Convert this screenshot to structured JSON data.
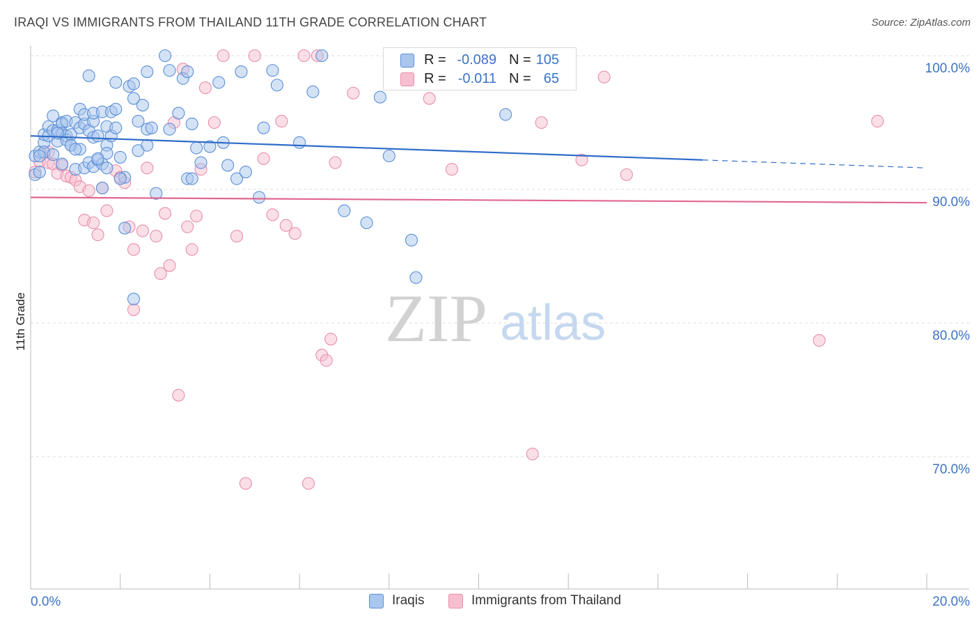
{
  "title": "IRAQI VS IMMIGRANTS FROM THAILAND 11TH GRADE CORRELATION CHART",
  "source": "Source: ZipAtlas.com",
  "watermark": {
    "part1": "ZIP",
    "part2": "atlas"
  },
  "stats": {
    "iraqis": {
      "r_label": "R =",
      "r_value": "-0.089",
      "n_label": "N =",
      "n_value": "105"
    },
    "thailand": {
      "r_label": "R =",
      "r_value": "-0.011",
      "n_label": "N =",
      "n_value": "65"
    }
  },
  "legend": {
    "iraqis": "Iraqis",
    "thailand": "Immigrants from Thailand"
  },
  "colors": {
    "iraqis_fill": "#a9c6ee",
    "iraqis_stroke": "#5b8fd6",
    "iraqis_line": "#2f6cc9",
    "thailand_fill": "#f6bfd0",
    "thailand_stroke": "#e88eab",
    "thailand_line": "#e0678f",
    "tick_text": "#3b73c4",
    "grid": "#dcdcdc"
  },
  "chart_data": {
    "type": "scatter",
    "title": "IRAQI VS IMMIGRANTS FROM THAILAND 11TH GRADE CORRELATION CHART",
    "xlabel": "",
    "ylabel": "11th Grade",
    "xlim": [
      0,
      20
    ],
    "ylim": [
      61,
      100.6
    ],
    "x_tick_labels": [
      "0.0%",
      "20.0%"
    ],
    "y_ticks": [
      100,
      90,
      80,
      70
    ],
    "y_tick_labels": [
      "100.0%",
      "90.0%",
      "80.0%",
      "70.0%"
    ],
    "grid": true,
    "legend_position": "bottom-center",
    "series": [
      {
        "name": "Iraqis",
        "r": -0.089,
        "n": 105,
        "trend": {
          "x": [
            0,
            15
          ],
          "y": [
            94.0,
            92.2
          ],
          "dashed_to": [
            20,
            91.6
          ]
        },
        "points": [
          [
            0.1,
            91.1
          ],
          [
            0.1,
            92.5
          ],
          [
            0.2,
            91.3
          ],
          [
            0.2,
            92.8
          ],
          [
            0.3,
            93.5
          ],
          [
            0.3,
            92.8
          ],
          [
            0.3,
            94.1
          ],
          [
            0.4,
            94.7
          ],
          [
            0.4,
            94.0
          ],
          [
            0.5,
            95.5
          ],
          [
            0.5,
            94.4
          ],
          [
            0.5,
            92.6
          ],
          [
            0.6,
            93.6
          ],
          [
            0.6,
            94.4
          ],
          [
            0.7,
            95.0
          ],
          [
            0.7,
            94.9
          ],
          [
            0.7,
            94.2
          ],
          [
            0.7,
            91.9
          ],
          [
            0.8,
            94.0
          ],
          [
            0.8,
            93.7
          ],
          [
            0.8,
            95.1
          ],
          [
            0.9,
            93.3
          ],
          [
            0.9,
            94.1
          ],
          [
            0.9,
            93.3
          ],
          [
            1.0,
            95.0
          ],
          [
            1.0,
            91.5
          ],
          [
            1.1,
            96.0
          ],
          [
            1.1,
            94.6
          ],
          [
            1.1,
            93.0
          ],
          [
            1.2,
            94.9
          ],
          [
            1.2,
            91.6
          ],
          [
            1.2,
            95.6
          ],
          [
            1.3,
            94.4
          ],
          [
            1.3,
            92.0
          ],
          [
            1.4,
            93.9
          ],
          [
            1.4,
            91.7
          ],
          [
            1.4,
            95.1
          ],
          [
            1.4,
            95.7
          ],
          [
            1.5,
            94.0
          ],
          [
            1.5,
            92.2
          ],
          [
            1.6,
            95.8
          ],
          [
            1.6,
            91.9
          ],
          [
            1.6,
            90.1
          ],
          [
            1.7,
            91.6
          ],
          [
            1.7,
            94.7
          ],
          [
            1.7,
            93.3
          ],
          [
            1.7,
            92.7
          ],
          [
            1.8,
            95.8
          ],
          [
            1.8,
            94.0
          ],
          [
            1.9,
            94.6
          ],
          [
            1.9,
            96.0
          ],
          [
            2.0,
            92.4
          ],
          [
            2.1,
            90.9
          ],
          [
            2.1,
            87.1
          ],
          [
            2.2,
            97.7
          ],
          [
            2.3,
            96.8
          ],
          [
            2.4,
            95.1
          ],
          [
            2.4,
            92.9
          ],
          [
            2.5,
            96.3
          ],
          [
            2.6,
            93.3
          ],
          [
            2.6,
            94.5
          ],
          [
            2.7,
            94.6
          ],
          [
            2.8,
            89.7
          ],
          [
            3.0,
            100.0
          ],
          [
            3.1,
            94.5
          ],
          [
            3.1,
            98.9
          ],
          [
            3.3,
            95.7
          ],
          [
            3.4,
            98.3
          ],
          [
            3.5,
            98.8
          ],
          [
            3.5,
            90.8
          ],
          [
            3.6,
            94.9
          ],
          [
            3.6,
            90.8
          ],
          [
            3.7,
            93.1
          ],
          [
            3.8,
            92.0
          ],
          [
            4.0,
            93.2
          ],
          [
            4.2,
            98.0
          ],
          [
            4.3,
            93.5
          ],
          [
            4.4,
            91.8
          ],
          [
            4.6,
            90.8
          ],
          [
            4.7,
            98.8
          ],
          [
            4.8,
            91.3
          ],
          [
            5.1,
            89.4
          ],
          [
            5.2,
            94.6
          ],
          [
            5.4,
            98.9
          ],
          [
            5.5,
            97.8
          ],
          [
            6.0,
            93.5
          ],
          [
            6.3,
            97.3
          ],
          [
            6.5,
            100.0
          ],
          [
            7.0,
            88.4
          ],
          [
            7.5,
            87.5
          ],
          [
            7.8,
            96.9
          ],
          [
            8.0,
            92.5
          ],
          [
            8.5,
            86.2
          ],
          [
            8.6,
            83.4
          ],
          [
            10.6,
            95.6
          ],
          [
            1.3,
            98.5
          ],
          [
            1.9,
            98.0
          ],
          [
            2.6,
            98.8
          ],
          [
            2.3,
            97.9
          ],
          [
            1.5,
            92.3
          ],
          [
            2.0,
            90.8
          ],
          [
            0.2,
            92.5
          ],
          [
            0.6,
            94.2
          ],
          [
            1.0,
            93.0
          ],
          [
            2.3,
            81.8
          ]
        ]
      },
      {
        "name": "Immigrants from Thailand",
        "r": -0.011,
        "n": 65,
        "trend": {
          "x": [
            0,
            20
          ],
          "y": [
            89.4,
            89.0
          ]
        },
        "points": [
          [
            0.1,
            91.3
          ],
          [
            0.2,
            92.1
          ],
          [
            0.3,
            92.7
          ],
          [
            0.4,
            92.0
          ],
          [
            0.5,
            91.9
          ],
          [
            0.6,
            91.2
          ],
          [
            0.7,
            91.8
          ],
          [
            0.8,
            91.0
          ],
          [
            0.9,
            90.9
          ],
          [
            1.0,
            90.7
          ],
          [
            1.1,
            90.2
          ],
          [
            1.2,
            87.7
          ],
          [
            1.3,
            89.9
          ],
          [
            1.4,
            87.5
          ],
          [
            1.5,
            86.6
          ],
          [
            1.6,
            90.1
          ],
          [
            1.7,
            88.4
          ],
          [
            1.9,
            91.4
          ],
          [
            2.0,
            90.9
          ],
          [
            2.1,
            90.5
          ],
          [
            2.2,
            87.2
          ],
          [
            2.3,
            85.5
          ],
          [
            2.3,
            81.0
          ],
          [
            2.5,
            86.9
          ],
          [
            2.6,
            91.6
          ],
          [
            2.8,
            86.5
          ],
          [
            2.9,
            83.7
          ],
          [
            3.0,
            88.2
          ],
          [
            3.1,
            84.3
          ],
          [
            3.2,
            95.0
          ],
          [
            3.4,
            99.0
          ],
          [
            3.5,
            87.2
          ],
          [
            3.6,
            85.5
          ],
          [
            3.7,
            88.0
          ],
          [
            3.8,
            91.5
          ],
          [
            3.9,
            97.6
          ],
          [
            4.1,
            95.0
          ],
          [
            4.3,
            100.0
          ],
          [
            4.6,
            86.5
          ],
          [
            4.8,
            68.0
          ],
          [
            5.0,
            100.0
          ],
          [
            5.2,
            92.3
          ],
          [
            5.4,
            88.1
          ],
          [
            5.6,
            95.1
          ],
          [
            5.7,
            87.3
          ],
          [
            5.9,
            86.7
          ],
          [
            6.1,
            100.0
          ],
          [
            6.2,
            68.0
          ],
          [
            6.4,
            100.0
          ],
          [
            6.5,
            77.6
          ],
          [
            6.6,
            77.2
          ],
          [
            6.7,
            78.8
          ],
          [
            6.8,
            92.0
          ],
          [
            7.2,
            97.2
          ],
          [
            8.9,
            96.8
          ],
          [
            9.4,
            91.5
          ],
          [
            11.4,
            95.0
          ],
          [
            11.2,
            70.2
          ],
          [
            12.3,
            92.2
          ],
          [
            12.8,
            98.4
          ],
          [
            13.3,
            91.1
          ],
          [
            17.6,
            78.7
          ],
          [
            18.9,
            95.1
          ],
          [
            3.3,
            74.6
          ],
          [
            0.4,
            92.8
          ]
        ]
      }
    ]
  }
}
